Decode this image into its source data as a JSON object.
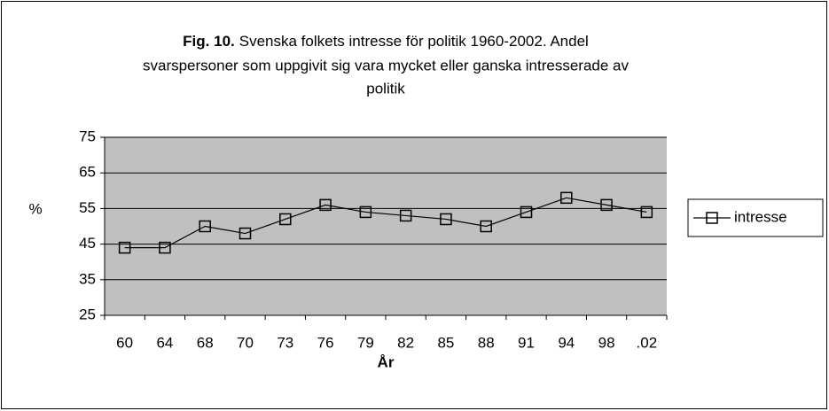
{
  "chart_data": {
    "type": "line",
    "title": {
      "prefix": "Fig. 10.",
      "lines": [
        "Svenska folkets intresse för politik 1960-2002. Andel",
        "svarspersoner som uppgivit sig vara mycket eller ganska intresserade av",
        "politik"
      ]
    },
    "x_label": "År",
    "y_label": "%",
    "categories": [
      "60",
      "64",
      "68",
      "70",
      "73",
      "76",
      "79",
      "82",
      "85",
      "88",
      "91",
      "94",
      "98",
      ".02"
    ],
    "series": [
      {
        "name": "intresse",
        "color": "#000000",
        "values": [
          44,
          44,
          50,
          48,
          52,
          56,
          54,
          53,
          52,
          50,
          54,
          58,
          56,
          54
        ]
      }
    ],
    "ylim": [
      25,
      75
    ],
    "yticks": [
      25,
      35,
      45,
      55,
      65,
      75
    ],
    "grid": true,
    "legend": "right"
  }
}
